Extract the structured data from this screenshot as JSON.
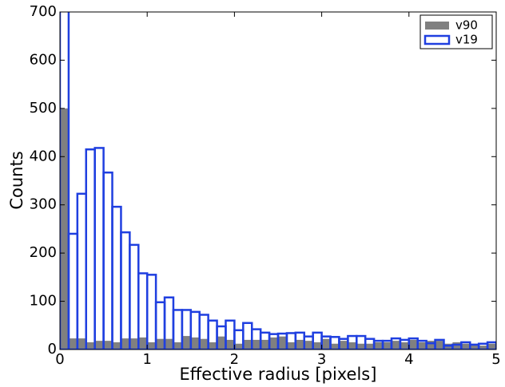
{
  "chart_data": {
    "type": "histogram",
    "xlabel": "Effective radius [pixels]",
    "ylabel": "Counts",
    "bins": [
      0,
      0.1,
      0.2,
      0.3,
      0.4,
      0.5,
      0.6,
      0.7,
      0.8,
      0.9,
      1.0,
      1.1,
      1.2,
      1.3,
      1.4,
      1.5,
      1.6,
      1.7,
      1.8,
      1.9,
      2.0,
      2.1,
      2.2,
      2.3,
      2.4,
      2.5,
      2.6,
      2.7,
      2.8,
      2.9,
      3.0,
      3.1,
      3.2,
      3.3,
      3.4,
      3.5,
      3.6,
      3.7,
      3.8,
      3.9,
      4.0,
      4.1,
      4.2,
      4.3,
      4.4,
      4.5,
      4.6,
      4.7,
      4.8,
      4.9,
      5.0
    ],
    "series": [
      {
        "name": "v90",
        "color": "#808080",
        "filled": true,
        "values": [
          500,
          23,
          23,
          15,
          18,
          18,
          15,
          23,
          23,
          25,
          15,
          22,
          22,
          15,
          28,
          25,
          22,
          15,
          27,
          20,
          12,
          20,
          20,
          20,
          25,
          27,
          15,
          20,
          18,
          15,
          22,
          12,
          18,
          15,
          12,
          12,
          15,
          15,
          18,
          15,
          20,
          15,
          18,
          18,
          12,
          15,
          12,
          12,
          8,
          12
        ]
      },
      {
        "name": "v19",
        "color": "#1f3fe0",
        "filled": false,
        "values": [
          750,
          240,
          323,
          415,
          418,
          367,
          296,
          243,
          217,
          158,
          155,
          98,
          108,
          82,
          82,
          78,
          72,
          60,
          48,
          60,
          40,
          55,
          42,
          35,
          32,
          33,
          34,
          35,
          27,
          35,
          27,
          26,
          22,
          28,
          28,
          22,
          18,
          18,
          23,
          20,
          23,
          18,
          13,
          20,
          8,
          10,
          15,
          10,
          12,
          15
        ]
      }
    ],
    "xlim": [
      0,
      5
    ],
    "xticks": [
      0,
      1,
      2,
      3,
      4,
      5
    ],
    "ylim": [
      0,
      700
    ],
    "yticks": [
      0,
      100,
      200,
      300,
      400,
      500,
      600,
      700
    ],
    "legend": "upper right"
  }
}
